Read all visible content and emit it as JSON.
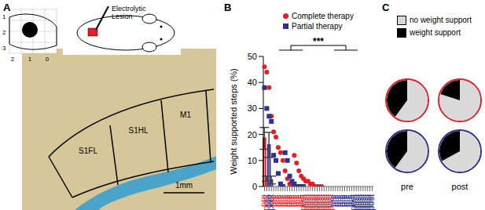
{
  "figure_a": {
    "label": "A",
    "annotation": "Electrolytic Lesion",
    "regions": [
      "S1FL",
      "S1HL",
      "M1"
    ],
    "scale_bar": "1mm",
    "inset_x_ticks": [
      2,
      1,
      0
    ],
    "inset_y_ticks": [
      1,
      2,
      3
    ]
  },
  "chart_data": [
    {
      "type": "bar",
      "title": "B",
      "categories": [
        "pre",
        "post",
        "pre",
        "post"
      ],
      "ylabel": "Weight supported steps (%)",
      "ylim": [
        0,
        50
      ],
      "yticks": [
        0,
        10,
        20,
        30,
        40,
        50
      ],
      "legend": "top-right",
      "annotations": [
        "***"
      ],
      "series": [
        {
          "name": "Complete therapy",
          "color": "#e41e26",
          "marker": "circle",
          "values": [
            18.5,
            3,
            null,
            null
          ],
          "error": [
            4.2,
            1.0,
            null,
            null
          ],
          "points": [
            [
              46,
              44,
              38,
              27,
              21,
              19,
              15,
              13,
              10,
              6,
              3,
              1,
              0
            ],
            [
              12,
              9,
              6,
              4,
              3,
              2,
              2,
              1,
              1,
              0,
              0,
              0,
              0
            ],
            [],
            []
          ]
        },
        {
          "name": "Partial therapy",
          "color": "#2e3192",
          "marker": "square",
          "values": [
            null,
            null,
            16,
            2.5
          ],
          "error": [
            null,
            null,
            4.8,
            1.5
          ],
          "points": [
            [],
            [],
            [
              38,
              30,
              27,
              25,
              12,
              10,
              5,
              1,
              0
            ],
            [
              13,
              10,
              4,
              2,
              1,
              0,
              0,
              0,
              0
            ]
          ]
        }
      ]
    },
    {
      "type": "pie",
      "title": "C",
      "legend": "top",
      "categories": [
        "no weight support",
        "weight support"
      ],
      "colors": [
        "#d9d9d9",
        "#000000"
      ],
      "columns": [
        "pre",
        "post"
      ],
      "series": [
        {
          "color": "#e41e26",
          "values": [
            [
              60,
              40
            ],
            [
              80,
              20
            ]
          ]
        },
        {
          "color": "#2e3192",
          "values": [
            [
              60,
              40
            ],
            [
              67,
              33
            ]
          ]
        }
      ]
    }
  ]
}
